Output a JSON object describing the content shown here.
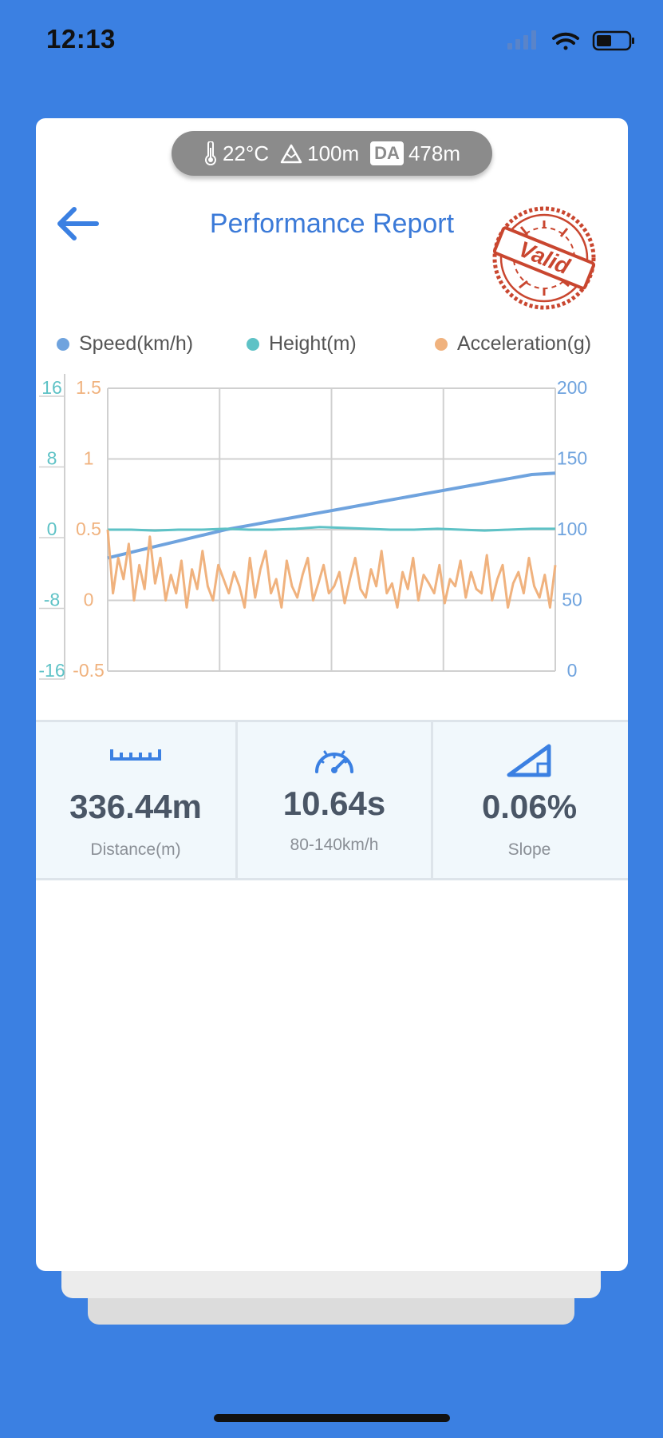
{
  "status": {
    "time": "12:13"
  },
  "conditions": {
    "temperature": "22°C",
    "altitude": "100m",
    "da_badge": "DA",
    "density_altitude": "478m"
  },
  "header": {
    "title": "Performance Report",
    "stamp": "Valid"
  },
  "legend": [
    {
      "label": "Speed(km/h)",
      "color": "#6fa3de"
    },
    {
      "label": "Height(m)",
      "color": "#5ec2c6"
    },
    {
      "label": "Acceleration(g)",
      "color": "#f0b27e"
    }
  ],
  "chart_data": {
    "type": "line",
    "axes": {
      "height": {
        "ticks": [
          "16",
          "8",
          "0",
          "-8",
          "-16"
        ],
        "ylim": [
          -16,
          16
        ],
        "color": "#5ec2c6"
      },
      "acceleration": {
        "ticks": [
          "1.5",
          "1",
          "0.5",
          "0",
          "-0.5"
        ],
        "ylim": [
          -0.5,
          1.5
        ],
        "color": "#f0b27e"
      },
      "speed": {
        "ticks": [
          "200",
          "150",
          "100",
          "50",
          "0"
        ],
        "ylim": [
          0,
          200
        ],
        "color": "#6fa3de"
      }
    },
    "grid": true,
    "series": [
      {
        "name": "Speed(km/h)",
        "axis": "speed",
        "color": "#6fa3de",
        "values": [
          80,
          84,
          88,
          92,
          96,
          100,
          103,
          106,
          109,
          112,
          115,
          118,
          121,
          124,
          127,
          130,
          133,
          136,
          139,
          140
        ]
      },
      {
        "name": "Height(m)",
        "axis": "height",
        "color": "#5ec2c6",
        "values": [
          0,
          0,
          -0.1,
          0,
          0,
          0.1,
          0,
          0,
          0.1,
          0.3,
          0.2,
          0.1,
          0,
          0,
          0.1,
          0,
          -0.1,
          0,
          0.1,
          0.1
        ]
      },
      {
        "name": "Acceleration(g)",
        "axis": "acceleration",
        "color": "#f0b27e",
        "values": [
          0.5,
          0.05,
          0.3,
          0.15,
          0.4,
          0.0,
          0.25,
          0.08,
          0.45,
          0.12,
          0.3,
          0.0,
          0.18,
          0.05,
          0.28,
          -0.05,
          0.22,
          0.08,
          0.35,
          0.1,
          0.0,
          0.25,
          0.15,
          0.05,
          0.2,
          0.1,
          -0.05,
          0.3,
          0.02,
          0.22,
          0.35,
          0.05,
          0.15,
          -0.05,
          0.28,
          0.1,
          0.02,
          0.18,
          0.3,
          0.0,
          0.12,
          0.25,
          0.05,
          0.1,
          0.2,
          -0.02,
          0.15,
          0.3,
          0.08,
          0.02,
          0.22,
          0.1,
          0.35,
          0.05,
          0.12,
          -0.05,
          0.2,
          0.08,
          0.3,
          0.0,
          0.18,
          0.12,
          0.05,
          0.25,
          -0.02,
          0.15,
          0.1,
          0.28,
          0.02,
          0.2,
          0.08,
          0.05,
          0.32,
          0.0,
          0.15,
          0.25,
          -0.05,
          0.12,
          0.2,
          0.05,
          0.3,
          0.1,
          0.02,
          0.18,
          -0.05,
          0.25
        ]
      }
    ]
  },
  "stats": [
    {
      "icon": "ruler-icon",
      "value": "336.44m",
      "label": "Distance(m)"
    },
    {
      "icon": "speedometer-icon",
      "value": "10.64s",
      "label": "80-140km/h"
    },
    {
      "icon": "slope-icon",
      "value": "0.06%",
      "label": "Slope"
    }
  ],
  "accent_color": "#3b7ad8",
  "background_color": "#3b80e2"
}
